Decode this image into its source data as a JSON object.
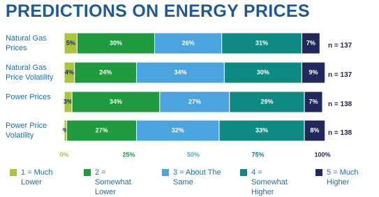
{
  "chart_data": {
    "type": "stacked-bar-horizontal",
    "title": "PREDICTIONS ON ENERGY PRICES",
    "categories": [
      "Natural Gas Prices",
      "Natural Gas Price Volatility",
      "Power Prices",
      "Power Price Volatility"
    ],
    "n_labels": [
      "n = 137",
      "n = 137",
      "n = 138",
      "n = 138"
    ],
    "series": [
      {
        "name": "1 = Much Lower",
        "color": "#a9c73b",
        "values": [
          5,
          4,
          3,
          1
        ],
        "value_labels": [
          "5%",
          "4%",
          "3%",
          "%"
        ]
      },
      {
        "name": "2 = Somewhat Lower",
        "color": "#1f9a3e",
        "values": [
          30,
          24,
          34,
          27
        ],
        "value_labels": [
          "30%",
          "24%",
          "34%",
          "27%"
        ]
      },
      {
        "name": "3 = About The Same",
        "color": "#4ba4de",
        "values": [
          26,
          34,
          27,
          32
        ],
        "value_labels": [
          "26%",
          "34%",
          "27%",
          "32%"
        ]
      },
      {
        "name": "4 = Somewhat Higher",
        "color": "#0f8a82",
        "values": [
          31,
          30,
          29,
          33
        ],
        "value_labels": [
          "31%",
          "30%",
          "29%",
          "33%"
        ]
      },
      {
        "name": "5 = Much Higher",
        "color": "#21295c",
        "values": [
          7,
          9,
          7,
          8
        ],
        "value_labels": [
          "7%",
          "9%",
          "7%",
          "8%"
        ]
      }
    ],
    "xlim": [
      0,
      100
    ],
    "xticks": [
      {
        "value": 0,
        "label": "0%"
      },
      {
        "value": 25,
        "label": "25%"
      },
      {
        "value": 50,
        "label": "50%"
      },
      {
        "value": 75,
        "label": "75%"
      },
      {
        "value": 100,
        "label": "100%"
      }
    ]
  }
}
